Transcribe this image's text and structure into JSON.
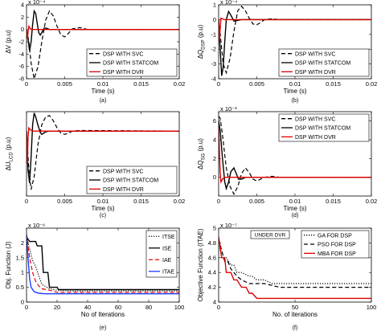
{
  "figure": {
    "background": "#ffffff"
  },
  "chart_data": [
    {
      "id": "a",
      "type": "line",
      "caption": "(a)",
      "xlabel": "Time (s)",
      "ylabel": "ΔV (p.u)",
      "exponent": "x 10⁻⁴",
      "xlim": [
        0,
        0.02
      ],
      "ylim": [
        -8,
        4
      ],
      "xticks": [
        0,
        0.005,
        0.01,
        0.015,
        0.02
      ],
      "xtick_labels": [
        "0",
        "0.005",
        "0.01",
        "0.015",
        "0.02"
      ],
      "yticks": [
        -8,
        -6,
        -4,
        -2,
        0,
        2,
        4
      ],
      "ytick_labels": [
        "-8",
        "-6",
        "-4",
        "-2",
        "0",
        "2",
        "4"
      ],
      "legend": {
        "placement": "lower-right",
        "entries": [
          "DSP WITH SVC",
          "DSP WITH STATCOM",
          "DSP WITH DVR"
        ]
      },
      "series": [
        {
          "name": "DSP WITH SVC",
          "color": "#000000",
          "dash": "dashed",
          "x": [
            0,
            0.0003,
            0.0006,
            0.001,
            0.0015,
            0.002,
            0.0025,
            0.003,
            0.0035,
            0.004,
            0.0045,
            0.005,
            0.0055,
            0.006,
            0.007,
            0.008,
            0.02
          ],
          "y": [
            0,
            -2,
            -5.5,
            -8,
            -6,
            -2,
            1.5,
            3,
            2.2,
            0.5,
            -0.9,
            -1.2,
            -0.6,
            0.1,
            0.3,
            0,
            0
          ]
        },
        {
          "name": "DSP WITH STATCOM",
          "color": "#000000",
          "dash": "solid",
          "x": [
            0,
            0.0002,
            0.0004,
            0.0006,
            0.0008,
            0.001,
            0.0012,
            0.0014,
            0.0016,
            0.0018,
            0.002,
            0.0023,
            0.0026,
            0.003,
            0.02
          ],
          "y": [
            0,
            -1.5,
            -3.5,
            -2,
            0.8,
            3,
            2.6,
            1,
            -0.5,
            -0.9,
            -0.5,
            0.2,
            0.2,
            0,
            0
          ]
        },
        {
          "name": "DSP WITH DVR",
          "color": "#e00000",
          "dash": "solid",
          "x": [
            0,
            0.0001,
            0.0002,
            0.0003,
            0.0004,
            0.0005,
            0.0007,
            0.001,
            0.02
          ],
          "y": [
            0,
            -1.5,
            -0.5,
            0.5,
            0.3,
            0.1,
            0,
            0,
            0
          ]
        }
      ]
    },
    {
      "id": "b",
      "type": "line",
      "caption": "(b)",
      "xlabel": "Time (s)",
      "ylabel": "ΔQ_DSP (p.u)",
      "exponent": "x 10⁻⁴",
      "xlim": [
        0,
        0.02
      ],
      "ylim": [
        -4,
        1
      ],
      "xticks": [
        0,
        0.005,
        0.01,
        0.015,
        0.02
      ],
      "xtick_labels": [
        "0",
        "0.005",
        "0.01",
        "0.015",
        "0.02"
      ],
      "yticks": [
        -4,
        -3,
        -2,
        -1,
        0,
        1
      ],
      "ytick_labels": [
        "-4",
        "-3",
        "-2",
        "-1",
        "0",
        "1"
      ],
      "legend": {
        "placement": "lower-right",
        "entries": [
          "DSP WITH SVC",
          "DSP WITH STATCOM",
          "DSP WITH DVR"
        ]
      },
      "series": [
        {
          "name": "DSP WITH SVC",
          "color": "#000000",
          "dash": "dashed",
          "x": [
            0,
            0.0003,
            0.0006,
            0.001,
            0.0015,
            0.002,
            0.0025,
            0.003,
            0.0035,
            0.004,
            0.0045,
            0.005,
            0.0055,
            0.006,
            0.007,
            0.008,
            0.02
          ],
          "y": [
            0,
            -1.5,
            -3,
            -3.6,
            -2.6,
            -0.8,
            0.6,
            0.9,
            0.6,
            0.1,
            -0.3,
            -0.35,
            -0.2,
            0,
            0.05,
            0,
            0
          ]
        },
        {
          "name": "DSP WITH STATCOM",
          "color": "#000000",
          "dash": "solid",
          "x": [
            0,
            0.0002,
            0.0004,
            0.0006,
            0.0008,
            0.001,
            0.0013,
            0.0016,
            0.002,
            0.0025,
            0.003,
            0.02
          ],
          "y": [
            0,
            -2,
            -3.8,
            -3.2,
            -1.5,
            0,
            0.55,
            0.3,
            -0.1,
            -0.05,
            0,
            0
          ]
        },
        {
          "name": "DSP WITH DVR",
          "color": "#e00000",
          "dash": "solid",
          "x": [
            0,
            0.0001,
            0.0002,
            0.0003,
            0.0005,
            0.0008,
            0.02
          ],
          "y": [
            0,
            -1.5,
            -0.6,
            0.1,
            0.05,
            0,
            0
          ]
        }
      ]
    },
    {
      "id": "c",
      "type": "line",
      "caption": "(c)",
      "xlabel": "Time (s)",
      "ylabel": "ΔU_LCD (p.u)",
      "exponent": "",
      "xlim": [
        0,
        0.02
      ],
      "ylim": [
        -10,
        3
      ],
      "xticks": [
        0,
        0.005,
        0.01,
        0.015,
        0.02
      ],
      "xtick_labels": [
        "0",
        "0.005",
        "0.01",
        "0.015",
        "0.02"
      ],
      "yticks": [],
      "ytick_labels": [],
      "legend": {
        "placement": "lower-right",
        "entries": [
          "DSP WITH SVC",
          "DSP WITH STATCOM",
          "DSP WITH DVR"
        ]
      },
      "series": [
        {
          "name": "DSP WITH SVC",
          "color": "#000000",
          "dash": "dashed",
          "x": [
            0,
            0.0003,
            0.0006,
            0.001,
            0.0015,
            0.002,
            0.0025,
            0.003,
            0.0035,
            0.004,
            0.0045,
            0.005,
            0.0055,
            0.006,
            0.007,
            0.02
          ],
          "y": [
            0,
            -6,
            -9,
            -7,
            -2,
            1,
            2.2,
            2.4,
            1.6,
            0.5,
            -0.3,
            -0.5,
            -0.3,
            0,
            0.1,
            0
          ]
        },
        {
          "name": "DSP WITH STATCOM",
          "color": "#000000",
          "dash": "solid",
          "x": [
            0,
            0.0002,
            0.0004,
            0.0006,
            0.0008,
            0.001,
            0.0012,
            0.0015,
            0.0018,
            0.002,
            0.0025,
            0.003,
            0.02
          ],
          "y": [
            0,
            -6,
            -8,
            -4,
            1,
            2.8,
            2.2,
            0.9,
            -0.2,
            -0.5,
            -0.1,
            0,
            0
          ]
        },
        {
          "name": "DSP WITH DVR",
          "color": "#e00000",
          "dash": "solid",
          "x": [
            0,
            0.0001,
            0.0002,
            0.0003,
            0.0005,
            0.0008,
            0.02
          ],
          "y": [
            0,
            -5,
            -1,
            0.5,
            0.2,
            0,
            0
          ]
        }
      ]
    },
    {
      "id": "d",
      "type": "line",
      "caption": "(d)",
      "xlabel": "Time (s)",
      "ylabel": "ΔQ_SG (p.u)",
      "exponent": "x 10⁻³",
      "xlim": [
        0,
        0.02
      ],
      "ylim": [
        -2,
        7
      ],
      "xticks": [
        0,
        0.005,
        0.01,
        0.015,
        0.02
      ],
      "xtick_labels": [
        "0",
        "0.005",
        "0.01",
        "0.015",
        "0.02"
      ],
      "yticks": [
        0,
        2,
        4,
        6
      ],
      "ytick_labels": [
        "0",
        "2",
        "4",
        "6"
      ],
      "legend": {
        "placement": "upper-right",
        "entries": [
          "DSP WITH SVC",
          "DSP WITH STATCOM",
          "DSP WITH DVR"
        ]
      },
      "series": [
        {
          "name": "DSP WITH SVC",
          "color": "#000000",
          "dash": "dashed",
          "x": [
            0,
            0.0002,
            0.0005,
            0.001,
            0.0015,
            0.002,
            0.0025,
            0.003,
            0.0035,
            0.004,
            0.0045,
            0.005,
            0.006,
            0.007,
            0.008,
            0.02
          ],
          "y": [
            6.5,
            6.3,
            4.5,
            1,
            -1,
            -1.8,
            -1,
            0.4,
            1,
            0.5,
            -0.2,
            -0.4,
            0,
            0.1,
            0,
            0
          ]
        },
        {
          "name": "DSP WITH STATCOM",
          "color": "#000000",
          "dash": "solid",
          "x": [
            0,
            0.0002,
            0.0005,
            0.0008,
            0.001,
            0.0013,
            0.0016,
            0.002,
            0.0023,
            0.0026,
            0.003,
            0.0035,
            0.02
          ],
          "y": [
            6,
            5,
            2,
            -0.5,
            -1.2,
            -0.5,
            0.6,
            1,
            0.4,
            -0.2,
            -0.2,
            0,
            0
          ]
        },
        {
          "name": "DSP WITH DVR",
          "color": "#e00000",
          "dash": "solid",
          "x": [
            0,
            0.0001,
            0.0002,
            0.0003,
            0.0005,
            0.0008,
            0.02
          ],
          "y": [
            5.5,
            3,
            0.5,
            -0.5,
            -0.2,
            0,
            0
          ]
        }
      ]
    },
    {
      "id": "e",
      "type": "line",
      "caption": "(e)",
      "xlabel": "No of Iterations",
      "ylabel": "Obj. Function (J)",
      "exponent": "x 10⁻⁶",
      "xlim": [
        0,
        100
      ],
      "ylim": [
        0,
        2.5
      ],
      "xticks": [
        0,
        20,
        40,
        60,
        80,
        100
      ],
      "xtick_labels": [
        "0",
        "20",
        "40",
        "60",
        "80",
        "100"
      ],
      "yticks": [
        0,
        0.5,
        1,
        1.5,
        2
      ],
      "ytick_labels": [
        "0",
        "0.5",
        "1",
        "1.5",
        "2"
      ],
      "legend": {
        "placement": "upper-right",
        "entries": [
          "ITSE",
          "ISE",
          "IAE",
          "ITAE"
        ]
      },
      "series": [
        {
          "name": "ITSE",
          "color": "#000000",
          "dash": "dotted",
          "x": [
            0,
            2,
            4,
            6,
            8,
            10,
            15,
            20,
            30,
            100
          ],
          "y": [
            2.2,
            1.8,
            1.4,
            1.2,
            0.9,
            0.6,
            0.45,
            0.4,
            0.38,
            0.38
          ]
        },
        {
          "name": "ISE",
          "color": "#000000",
          "dash": "solid",
          "x": [
            0,
            2,
            6,
            7,
            10,
            11,
            14,
            15,
            20,
            21,
            100
          ],
          "y": [
            2.2,
            2.05,
            2.05,
            1.9,
            1.9,
            1.0,
            1.0,
            0.5,
            0.5,
            0.42,
            0.42
          ]
        },
        {
          "name": "IAE",
          "color": "#e00000",
          "dash": "dashed",
          "x": [
            0,
            2,
            4,
            6,
            8,
            10,
            15,
            20,
            100
          ],
          "y": [
            2.3,
            1.5,
            1.0,
            0.7,
            0.55,
            0.45,
            0.4,
            0.33,
            0.33
          ]
        },
        {
          "name": "ITAE",
          "color": "#1e3cff",
          "dash": "solid",
          "x": [
            0,
            1,
            2,
            3,
            5,
            8,
            12,
            100
          ],
          "y": [
            2.25,
            1.5,
            0.8,
            0.5,
            0.35,
            0.3,
            0.28,
            0.28
          ]
        }
      ]
    },
    {
      "id": "f",
      "type": "line",
      "caption": "(f)",
      "xlabel": "No. of iterations",
      "ylabel": "Objective Function (ITAE)",
      "exponent": "x 10⁻⁷",
      "xlim": [
        0,
        100
      ],
      "ylim": [
        4,
        5
      ],
      "xticks": [
        0,
        50,
        100
      ],
      "xtick_labels": [
        "0",
        "50",
        "100"
      ],
      "yticks": [
        4,
        4.2,
        4.4,
        4.6,
        4.8,
        5
      ],
      "ytick_labels": [
        "4",
        "4.2",
        "4.4",
        "4.6",
        "4.8",
        "5"
      ],
      "annotation": "UNDER DVR",
      "legend": {
        "placement": "upper-right",
        "entries": [
          "GA FOR DSP",
          "PSO FOR DSP",
          "MBA FOR DSP"
        ]
      },
      "series": [
        {
          "name": "GA FOR DSP",
          "color": "#000000",
          "dash": "dotted",
          "x": [
            0,
            2,
            5,
            8,
            10,
            12,
            15,
            20,
            22,
            25,
            30,
            35,
            100
          ],
          "y": [
            4.8,
            4.6,
            4.6,
            4.5,
            4.5,
            4.4,
            4.4,
            4.35,
            4.35,
            4.3,
            4.3,
            4.25,
            4.25
          ]
        },
        {
          "name": "PSO FOR DSP",
          "color": "#000000",
          "dash": "dashed",
          "x": [
            0,
            2,
            4,
            6,
            8,
            10,
            12,
            15,
            20,
            30,
            40,
            45,
            100
          ],
          "y": [
            4.85,
            4.7,
            4.55,
            4.55,
            4.45,
            4.4,
            4.35,
            4.3,
            4.25,
            4.25,
            4.2,
            4.2,
            4.2
          ]
        },
        {
          "name": "MBA FOR DSP",
          "color": "#e00000",
          "dash": "solid",
          "x": [
            0,
            1,
            2,
            4,
            5,
            8,
            10,
            12,
            15,
            18,
            20,
            22,
            25,
            100
          ],
          "y": [
            4.88,
            4.75,
            4.6,
            4.6,
            4.4,
            4.4,
            4.3,
            4.3,
            4.2,
            4.2,
            4.12,
            4.12,
            4.05,
            4.05
          ]
        }
      ]
    }
  ]
}
